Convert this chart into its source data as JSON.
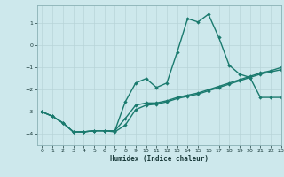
{
  "xlabel": "Humidex (Indice chaleur)",
  "bg_color": "#cde8ec",
  "line_color": "#1a7a6e",
  "grid_color": "#b8d4d8",
  "xlim": [
    -0.5,
    23
  ],
  "ylim": [
    -4.5,
    1.8
  ],
  "yticks": [
    -4,
    -3,
    -2,
    -1,
    0,
    1
  ],
  "xticks": [
    0,
    1,
    2,
    3,
    4,
    5,
    6,
    7,
    8,
    9,
    10,
    11,
    12,
    13,
    14,
    15,
    16,
    17,
    18,
    19,
    20,
    21,
    22,
    23
  ],
  "line1_x": [
    0,
    1,
    2,
    3,
    4,
    5,
    6,
    7,
    8,
    9,
    10,
    11,
    12,
    13,
    14,
    15,
    16,
    17,
    18,
    19,
    20,
    21,
    22,
    23
  ],
  "line1_y": [
    -3.0,
    -3.2,
    -3.5,
    -3.9,
    -3.9,
    -3.85,
    -3.85,
    -3.85,
    -2.55,
    -1.7,
    -1.5,
    -1.9,
    -1.7,
    -0.3,
    1.2,
    1.05,
    1.4,
    0.35,
    -0.9,
    -1.3,
    -1.45,
    -2.35,
    -2.35,
    -2.35
  ],
  "line2_x": [
    0,
    1,
    2,
    3,
    4,
    5,
    6,
    7,
    8,
    9,
    10,
    11,
    12,
    13,
    14,
    15,
    16,
    17,
    18,
    19,
    20,
    21,
    22,
    23
  ],
  "line2_y": [
    -3.0,
    -3.2,
    -3.5,
    -3.9,
    -3.9,
    -3.85,
    -3.85,
    -3.9,
    -3.6,
    -2.9,
    -2.7,
    -2.65,
    -2.55,
    -2.4,
    -2.3,
    -2.2,
    -2.05,
    -1.9,
    -1.75,
    -1.6,
    -1.45,
    -1.3,
    -1.2,
    -1.1
  ],
  "line3_x": [
    0,
    1,
    2,
    3,
    4,
    5,
    6,
    7,
    8,
    9,
    10,
    11,
    12,
    13,
    14,
    15,
    16,
    17,
    18,
    19,
    20,
    21,
    22,
    23
  ],
  "line3_y": [
    -3.0,
    -3.2,
    -3.5,
    -3.9,
    -3.9,
    -3.85,
    -3.85,
    -3.85,
    -3.3,
    -2.7,
    -2.6,
    -2.6,
    -2.5,
    -2.35,
    -2.25,
    -2.15,
    -2.0,
    -1.85,
    -1.7,
    -1.55,
    -1.4,
    -1.25,
    -1.15,
    -1.0
  ],
  "marker": "D",
  "markersize": 2.2,
  "linewidth": 1.0
}
